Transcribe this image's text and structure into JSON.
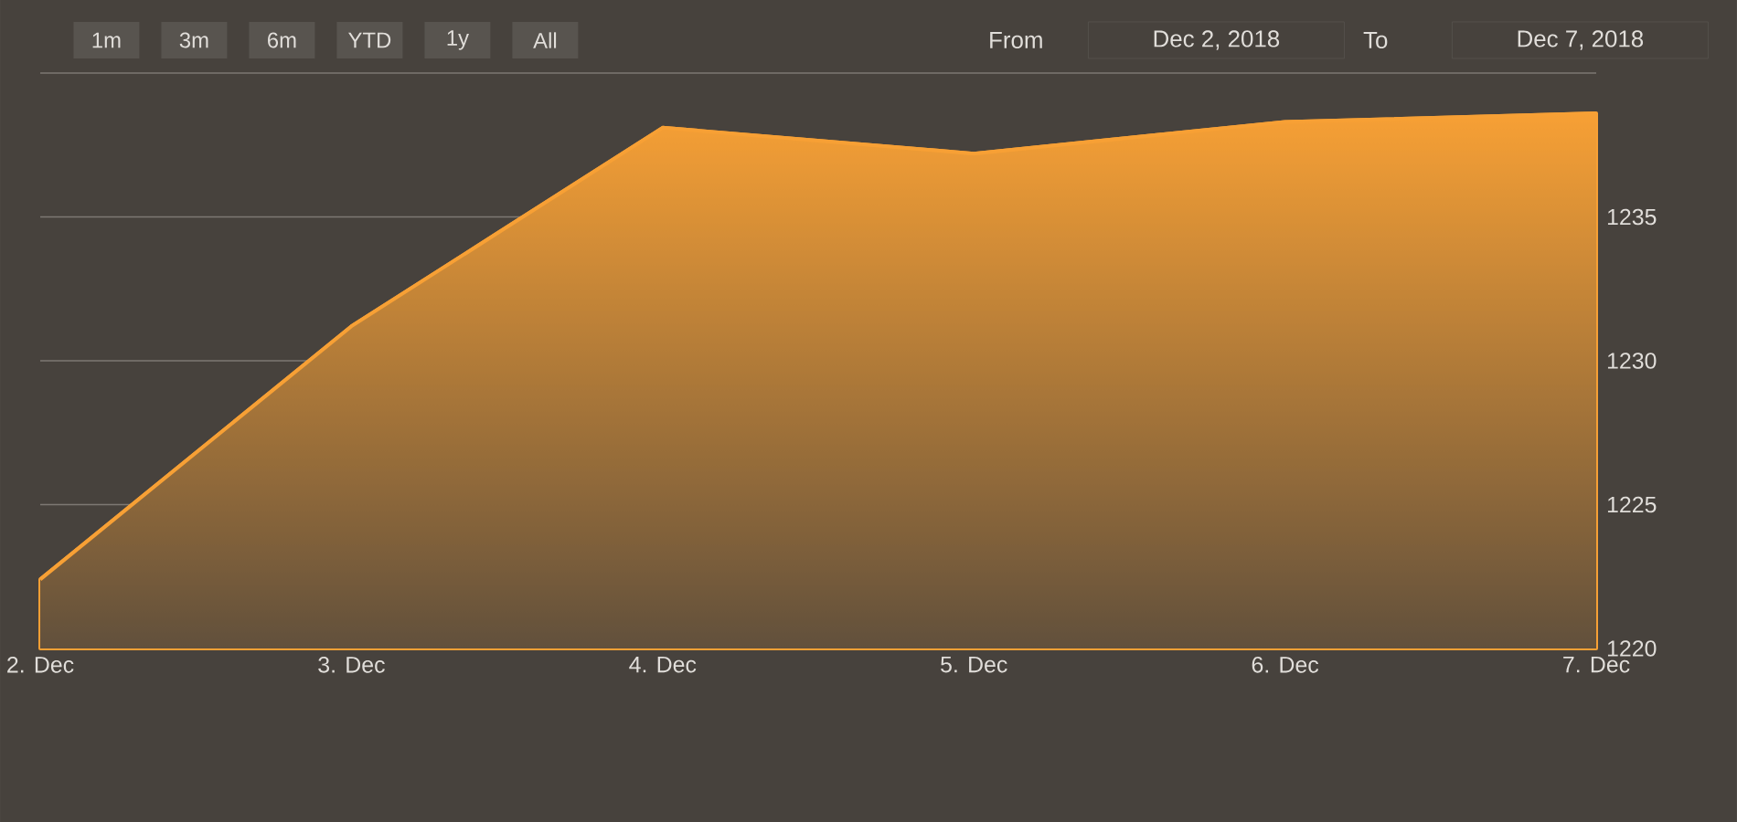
{
  "chart_data": {
    "type": "area",
    "x": [
      "2018-12-02",
      "2018-12-03",
      "2018-12-04",
      "2018-12-05",
      "2018-12-06",
      "2018-12-07"
    ],
    "series": [
      {
        "color": "#f7a035",
        "values": [
          1222.4,
          1231.2,
          1238.1,
          1237.2,
          1238.3,
          1238.6
        ]
      }
    ],
    "xlim": [
      "2018-12-02",
      "2018-12-07"
    ],
    "xticks": [
      {
        "value": "2018-12-02",
        "label": "2. Dec"
      },
      {
        "value": "2018-12-03",
        "label": "3. Dec"
      },
      {
        "value": "2018-12-04",
        "label": "4. Dec"
      },
      {
        "value": "2018-12-05",
        "label": "5. Dec"
      },
      {
        "value": "2018-12-06",
        "label": "6. Dec"
      },
      {
        "value": "2018-12-07",
        "label": "7. Dec"
      }
    ],
    "ylim": [
      1220,
      1240
    ],
    "yticks": [
      1220,
      1225,
      1230,
      1235,
      {
        "value": 1240,
        "label": null
      }
    ],
    "grid": "y",
    "annotations": [
      "1m",
      "3m",
      "6m",
      "YTD",
      "1y",
      "All",
      "From",
      "Dec 2, 2018",
      "To",
      "Dec 7, 2018"
    ]
  }
}
